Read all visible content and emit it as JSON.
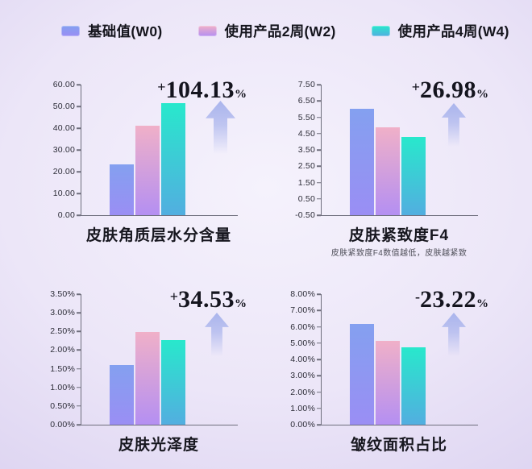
{
  "legend": {
    "items": [
      {
        "label": "基础值(W0)"
      },
      {
        "label": "使用产品2周(W2)"
      },
      {
        "label": "使用产品4周(W4)"
      }
    ]
  },
  "colors": {
    "series": [
      {
        "name": "基础值(W0)",
        "top": "#84a0f0",
        "bottom": "#9a8ef4"
      },
      {
        "name": "使用产品2周(W2)",
        "top": "#f0b0c8",
        "bottom": "#b48ff2"
      },
      {
        "name": "使用产品4周(W4)",
        "top": "#28e8cc",
        "bottom": "#52aee0"
      }
    ],
    "arrow": "#a7b2ec",
    "axis": "#6f6f7d",
    "annotation_text": "#14141e"
  },
  "chart_data": [
    {
      "type": "bar",
      "title": "皮肤角质层水分含量",
      "categories": [
        "基础值(W0)",
        "使用产品2周(W2)",
        "使用产品4周(W4)"
      ],
      "values": [
        23.2,
        41.3,
        51.6
      ],
      "ylim": [
        0,
        60
      ],
      "yticks": [
        "60.00",
        "50.00",
        "40.00",
        "30.00",
        "20.00",
        "10.00",
        "0.00"
      ],
      "annotation": {
        "sign": "+",
        "value": "104.13",
        "suffix": "%"
      },
      "note": "",
      "grid": false,
      "legend_position": "top"
    },
    {
      "type": "bar",
      "title": "皮肤紧致度F4",
      "categories": [
        "基础值(W0)",
        "使用产品2周(W2)",
        "使用产品4周(W4)"
      ],
      "values": [
        6.0,
        4.88,
        4.28
      ],
      "ylim": [
        -0.5,
        7.5
      ],
      "yticks": [
        "7.50",
        "6.50",
        "5.50",
        "4.50",
        "3.50",
        "2.50",
        "1.50",
        "0.50",
        "-0.50"
      ],
      "annotation": {
        "sign": "+",
        "value": "26.98",
        "suffix": "%"
      },
      "note": "皮肤紧致度F4数值越低，皮肤越紧致",
      "grid": false,
      "legend_position": "top"
    },
    {
      "type": "bar",
      "title": "皮肤光泽度",
      "categories": [
        "基础值(W0)",
        "使用产品2周(W2)",
        "使用产品4周(W4)"
      ],
      "values": [
        1.6,
        2.48,
        2.27
      ],
      "ylim": [
        0,
        3.5
      ],
      "yticks": [
        "3.50%",
        "3.00%",
        "2.50%",
        "2.00%",
        "1.50%",
        "1.00%",
        "0.50%",
        "0.00%"
      ],
      "annotation": {
        "sign": "+",
        "value": "34.53",
        "suffix": "%"
      },
      "note": "",
      "grid": false,
      "legend_position": "top"
    },
    {
      "type": "bar",
      "title": "皱纹面积占比",
      "categories": [
        "基础值(W0)",
        "使用产品2周(W2)",
        "使用产品4周(W4)"
      ],
      "values": [
        6.15,
        5.12,
        4.75
      ],
      "ylim": [
        0,
        8
      ],
      "yticks": [
        "8.00%",
        "7.00%",
        "6.00%",
        "5.00%",
        "4.00%",
        "3.00%",
        "2.00%",
        "1.00%",
        "0.00%"
      ],
      "annotation": {
        "sign": "-",
        "value": "23.22",
        "suffix": "%"
      },
      "note": "",
      "grid": false,
      "legend_position": "top"
    }
  ]
}
